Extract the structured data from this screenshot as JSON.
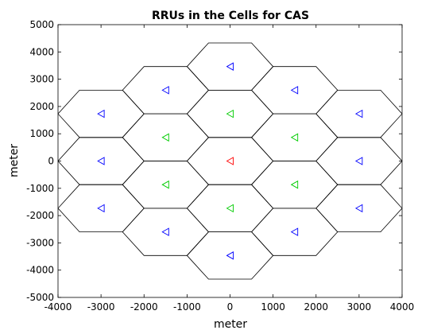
{
  "chart_data": {
    "type": "scatter",
    "title": "RRUs in the Cells for CAS",
    "xlabel": "meter",
    "ylabel": "meter",
    "xlim": [
      -4000,
      4000
    ],
    "ylim": [
      -5000,
      5000
    ],
    "x_ticks": [
      -4000,
      -3000,
      -2000,
      -1000,
      0,
      1000,
      2000,
      3000,
      4000
    ],
    "y_ticks": [
      -5000,
      -4000,
      -3000,
      -2000,
      -1000,
      0,
      1000,
      2000,
      3000,
      4000,
      5000
    ],
    "grid": false,
    "marker": "left-triangle",
    "cell_radius": 1000,
    "cells": [
      {
        "x": 0,
        "y": 0
      },
      {
        "x": 0,
        "y": 1732
      },
      {
        "x": 1500,
        "y": 866
      },
      {
        "x": 1500,
        "y": -866
      },
      {
        "x": 0,
        "y": -1732
      },
      {
        "x": -1500,
        "y": -866
      },
      {
        "x": -1500,
        "y": 866
      },
      {
        "x": 0,
        "y": 3464
      },
      {
        "x": 1500,
        "y": 2598
      },
      {
        "x": 3000,
        "y": 1732
      },
      {
        "x": 3000,
        "y": 0
      },
      {
        "x": 3000,
        "y": -1732
      },
      {
        "x": 1500,
        "y": -2598
      },
      {
        "x": 0,
        "y": -3464
      },
      {
        "x": -1500,
        "y": -2598
      },
      {
        "x": -3000,
        "y": -1732
      },
      {
        "x": -3000,
        "y": 0
      },
      {
        "x": -3000,
        "y": 1732
      },
      {
        "x": -1500,
        "y": 2598
      }
    ],
    "series": [
      {
        "color": "#ff0000",
        "points": [
          {
            "x": 0,
            "y": 0
          }
        ]
      },
      {
        "color": "#00cc00",
        "points": [
          {
            "x": 0,
            "y": 1732
          },
          {
            "x": 1500,
            "y": 866
          },
          {
            "x": 1500,
            "y": -866
          },
          {
            "x": 0,
            "y": -1732
          },
          {
            "x": -1500,
            "y": -866
          },
          {
            "x": -1500,
            "y": 866
          }
        ]
      },
      {
        "color": "#0000ff",
        "points": [
          {
            "x": 0,
            "y": 3464
          },
          {
            "x": 1500,
            "y": 2598
          },
          {
            "x": 3000,
            "y": 1732
          },
          {
            "x": 3000,
            "y": 0
          },
          {
            "x": 3000,
            "y": -1732
          },
          {
            "x": 1500,
            "y": -2598
          },
          {
            "x": 0,
            "y": -3464
          },
          {
            "x": -1500,
            "y": -2598
          },
          {
            "x": -3000,
            "y": -1732
          },
          {
            "x": -3000,
            "y": 0
          },
          {
            "x": -3000,
            "y": 1732
          },
          {
            "x": -1500,
            "y": 2598
          }
        ]
      }
    ]
  }
}
